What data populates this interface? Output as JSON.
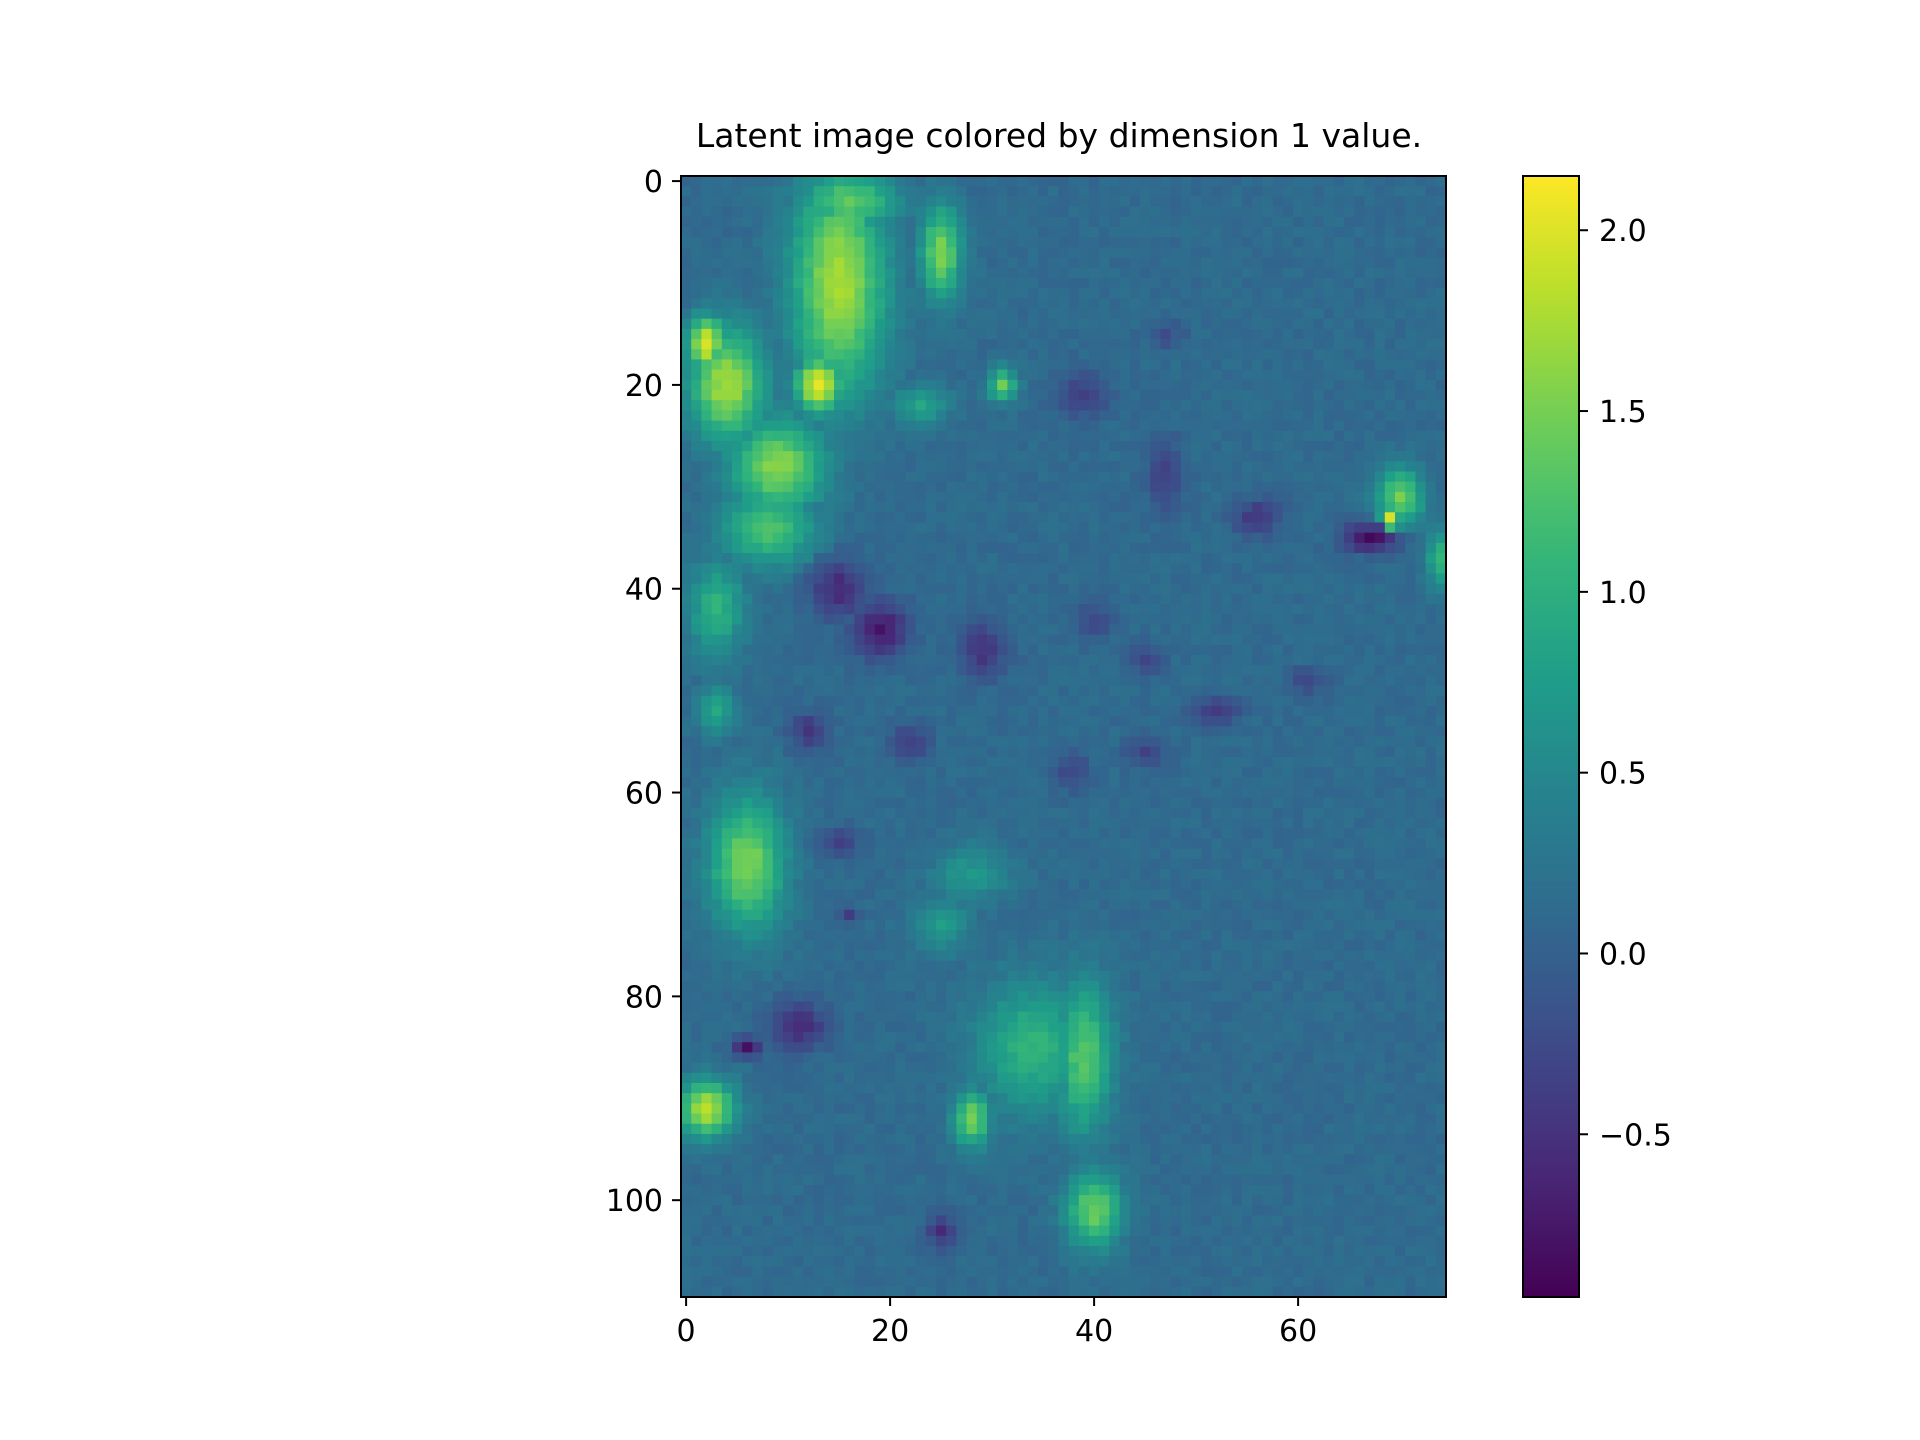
{
  "chart_data": {
    "type": "heatmap",
    "title": "Latent image colored by dimension 1 value.",
    "xlabel": "",
    "ylabel": "",
    "colormap": "viridis",
    "grid": false,
    "width_cells": 75,
    "height_cells": 110,
    "xlim": [
      -0.5,
      74.5
    ],
    "ylim": [
      109.5,
      -0.5
    ],
    "x_ticks": [
      0,
      20,
      40,
      60
    ],
    "y_ticks": [
      0,
      20,
      40,
      60,
      80,
      100
    ],
    "colorbar": {
      "vmin": -0.95,
      "vmax": 2.15,
      "ticks": [
        -0.5,
        0.0,
        0.5,
        1.0,
        1.5,
        2.0
      ],
      "tick_labels": [
        "−0.5",
        "0.0",
        "0.5",
        "1.0",
        "1.5",
        "2.0"
      ]
    },
    "background_value": 0.12,
    "regions": [
      {
        "x": 15,
        "y": 10,
        "rx": 5,
        "ry": 12,
        "value": 1.75
      },
      {
        "x": 13,
        "y": 20,
        "rx": 2.5,
        "ry": 3,
        "value": 2.05
      },
      {
        "x": 16,
        "y": 2,
        "rx": 5,
        "ry": 3,
        "value": 1.4
      },
      {
        "x": 25,
        "y": 7,
        "rx": 2.2,
        "ry": 5,
        "value": 1.55
      },
      {
        "x": 4,
        "y": 20,
        "rx": 4,
        "ry": 6,
        "value": 1.75
      },
      {
        "x": 2,
        "y": 16,
        "rx": 2,
        "ry": 3,
        "value": 2.0
      },
      {
        "x": 9,
        "y": 28,
        "rx": 5,
        "ry": 5,
        "value": 1.6
      },
      {
        "x": 8,
        "y": 34,
        "rx": 5,
        "ry": 4,
        "value": 1.3
      },
      {
        "x": 23,
        "y": 22,
        "rx": 3,
        "ry": 2,
        "value": 0.85
      },
      {
        "x": 31,
        "y": 20,
        "rx": 1.5,
        "ry": 1.8,
        "value": 1.4
      },
      {
        "x": 3,
        "y": 42,
        "rx": 3,
        "ry": 5,
        "value": 1.05
      },
      {
        "x": 3,
        "y": 52,
        "rx": 2,
        "ry": 2.5,
        "value": 0.9
      },
      {
        "x": 6,
        "y": 67,
        "rx": 4,
        "ry": 7,
        "value": 1.55
      },
      {
        "x": 2,
        "y": 91,
        "rx": 3,
        "ry": 3,
        "value": 1.85
      },
      {
        "x": 28,
        "y": 68,
        "rx": 4,
        "ry": 3,
        "value": 0.7
      },
      {
        "x": 25,
        "y": 73,
        "rx": 3,
        "ry": 3,
        "value": 0.75
      },
      {
        "x": 34,
        "y": 85,
        "rx": 6,
        "ry": 7,
        "value": 1.05
      },
      {
        "x": 39,
        "y": 86,
        "rx": 3,
        "ry": 8,
        "value": 1.35
      },
      {
        "x": 28,
        "y": 92,
        "rx": 2,
        "ry": 3,
        "value": 1.5
      },
      {
        "x": 40,
        "y": 101,
        "rx": 3,
        "ry": 4,
        "value": 1.45
      },
      {
        "x": 70,
        "y": 31,
        "rx": 2.5,
        "ry": 3,
        "value": 1.45
      },
      {
        "x": 69,
        "y": 33,
        "rx": 1,
        "ry": 1.5,
        "value": 1.95
      },
      {
        "x": 74,
        "y": 37,
        "rx": 1.5,
        "ry": 3,
        "value": 1.1
      },
      {
        "x": 15,
        "y": 40,
        "rx": 3,
        "ry": 3,
        "value": -0.6
      },
      {
        "x": 19,
        "y": 44,
        "rx": 3,
        "ry": 3,
        "value": -0.75
      },
      {
        "x": 29,
        "y": 46,
        "rx": 2.5,
        "ry": 3,
        "value": -0.5
      },
      {
        "x": 39,
        "y": 21,
        "rx": 3,
        "ry": 2.5,
        "value": -0.35
      },
      {
        "x": 47,
        "y": 29,
        "rx": 2,
        "ry": 4,
        "value": -0.35
      },
      {
        "x": 56,
        "y": 33,
        "rx": 2.5,
        "ry": 2,
        "value": -0.45
      },
      {
        "x": 67,
        "y": 35,
        "rx": 3,
        "ry": 1.5,
        "value": -0.85
      },
      {
        "x": 12,
        "y": 54,
        "rx": 2,
        "ry": 2,
        "value": -0.45
      },
      {
        "x": 22,
        "y": 55,
        "rx": 2,
        "ry": 2,
        "value": -0.4
      },
      {
        "x": 15,
        "y": 65,
        "rx": 2,
        "ry": 1.5,
        "value": -0.4
      },
      {
        "x": 16,
        "y": 72,
        "rx": 1,
        "ry": 1,
        "value": -0.4
      },
      {
        "x": 11,
        "y": 83,
        "rx": 3,
        "ry": 2.5,
        "value": -0.6
      },
      {
        "x": 6,
        "y": 85,
        "rx": 1.5,
        "ry": 1,
        "value": -0.8
      },
      {
        "x": 25,
        "y": 103,
        "rx": 1.5,
        "ry": 1.8,
        "value": -0.55
      },
      {
        "x": 52,
        "y": 52,
        "rx": 2.5,
        "ry": 1.5,
        "value": -0.45
      },
      {
        "x": 45,
        "y": 56,
        "rx": 2,
        "ry": 1.5,
        "value": -0.35
      },
      {
        "x": 40,
        "y": 43,
        "rx": 2,
        "ry": 2,
        "value": -0.3
      },
      {
        "x": 45,
        "y": 47,
        "rx": 2,
        "ry": 1.5,
        "value": -0.3
      },
      {
        "x": 61,
        "y": 49,
        "rx": 2,
        "ry": 1.5,
        "value": -0.3
      },
      {
        "x": 38,
        "y": 58,
        "rx": 2,
        "ry": 2,
        "value": -0.3
      },
      {
        "x": 47,
        "y": 15,
        "rx": 2,
        "ry": 1.5,
        "value": -0.2
      }
    ]
  }
}
